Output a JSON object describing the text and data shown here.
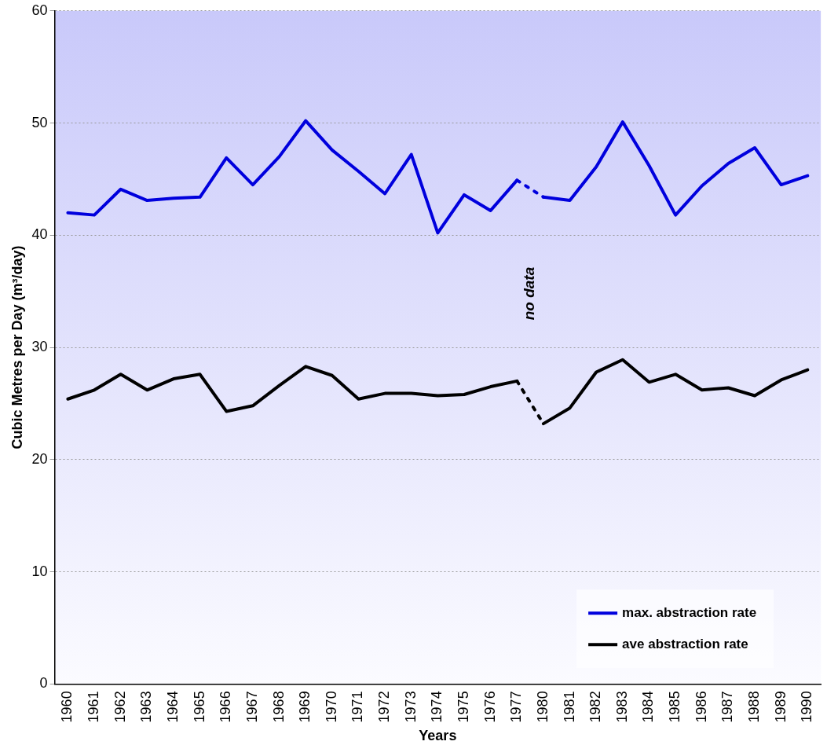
{
  "chart_data": {
    "type": "line",
    "xlabel": "Years",
    "ylabel": "Cubic Metres per Day (m³/day)",
    "categories": [
      "1960",
      "1961",
      "1962",
      "1963",
      "1964",
      "1965",
      "1966",
      "1967",
      "1968",
      "1969",
      "1970",
      "1971",
      "1972",
      "1973",
      "1974",
      "1975",
      "1976",
      "1977",
      "1980",
      "1981",
      "1982",
      "1983",
      "1984",
      "1985",
      "1986",
      "1987",
      "1988",
      "1989",
      "1990"
    ],
    "series": [
      {
        "name": "max. abstraction rate",
        "color": "#0000dd",
        "values": [
          42.0,
          41.8,
          44.1,
          43.1,
          43.3,
          43.4,
          46.9,
          44.5,
          47.0,
          50.2,
          47.6,
          45.7,
          43.7,
          47.2,
          40.2,
          43.6,
          42.2,
          44.9,
          43.4,
          43.1,
          46.1,
          50.1,
          46.2,
          41.8,
          44.4,
          46.4,
          47.8,
          44.5,
          45.3
        ]
      },
      {
        "name": "ave abstraction rate",
        "color": "#000000",
        "values": [
          25.4,
          26.2,
          27.6,
          26.2,
          27.2,
          27.6,
          24.3,
          24.8,
          26.6,
          28.3,
          27.5,
          25.4,
          25.9,
          25.9,
          25.7,
          25.8,
          26.5,
          27.0,
          23.2,
          24.6,
          27.8,
          28.9,
          26.9,
          27.6,
          26.2,
          26.4,
          25.7,
          27.1,
          28.0
        ]
      }
    ],
    "ylim": [
      0,
      60
    ],
    "yticks": [
      0,
      10,
      20,
      30,
      40,
      50,
      60
    ],
    "grid": "y",
    "legend": "bottom right",
    "marker": "none",
    "line_style": "solid",
    "annotations": [
      "no data"
    ]
  }
}
